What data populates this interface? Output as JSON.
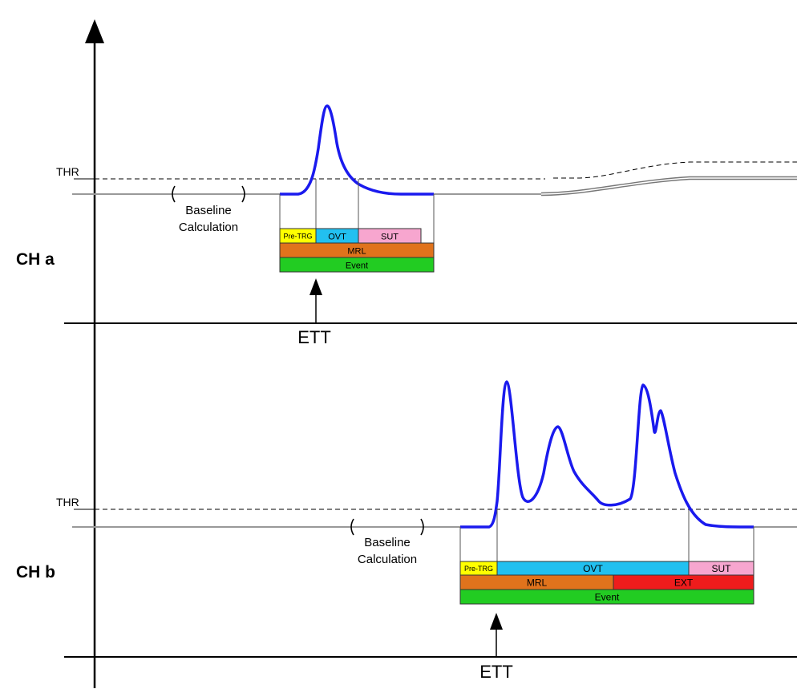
{
  "channel_a": {
    "name": "CH a",
    "threshold_label": "THR",
    "baseline_label_line1": "Baseline",
    "baseline_label_line2": "Calculation",
    "trigger_label": "ETT",
    "segments_row1": [
      "Pre-TRG",
      "OVT",
      "SUT"
    ],
    "segments_row2": [
      "MRL"
    ],
    "segments_row3": [
      "Event"
    ]
  },
  "channel_b": {
    "name": "CH b",
    "threshold_label": "THR",
    "baseline_label_line1": "Baseline",
    "baseline_label_line2": "Calculation",
    "trigger_label": "ETT",
    "segments_row1": [
      "Pre-TRG",
      "OVT",
      "SUT"
    ],
    "segments_row2": [
      "MRL",
      "EXT"
    ],
    "segments_row3": [
      "Event"
    ]
  },
  "colors": {
    "signal": "#1a1aee",
    "pre_trg": "#ffff00",
    "ovt": "#22c0f0",
    "sut": "#f7a6cf",
    "mrl": "#e0731c",
    "ext": "#ee1c1c",
    "event": "#22cc22",
    "baseline": "#888888"
  }
}
